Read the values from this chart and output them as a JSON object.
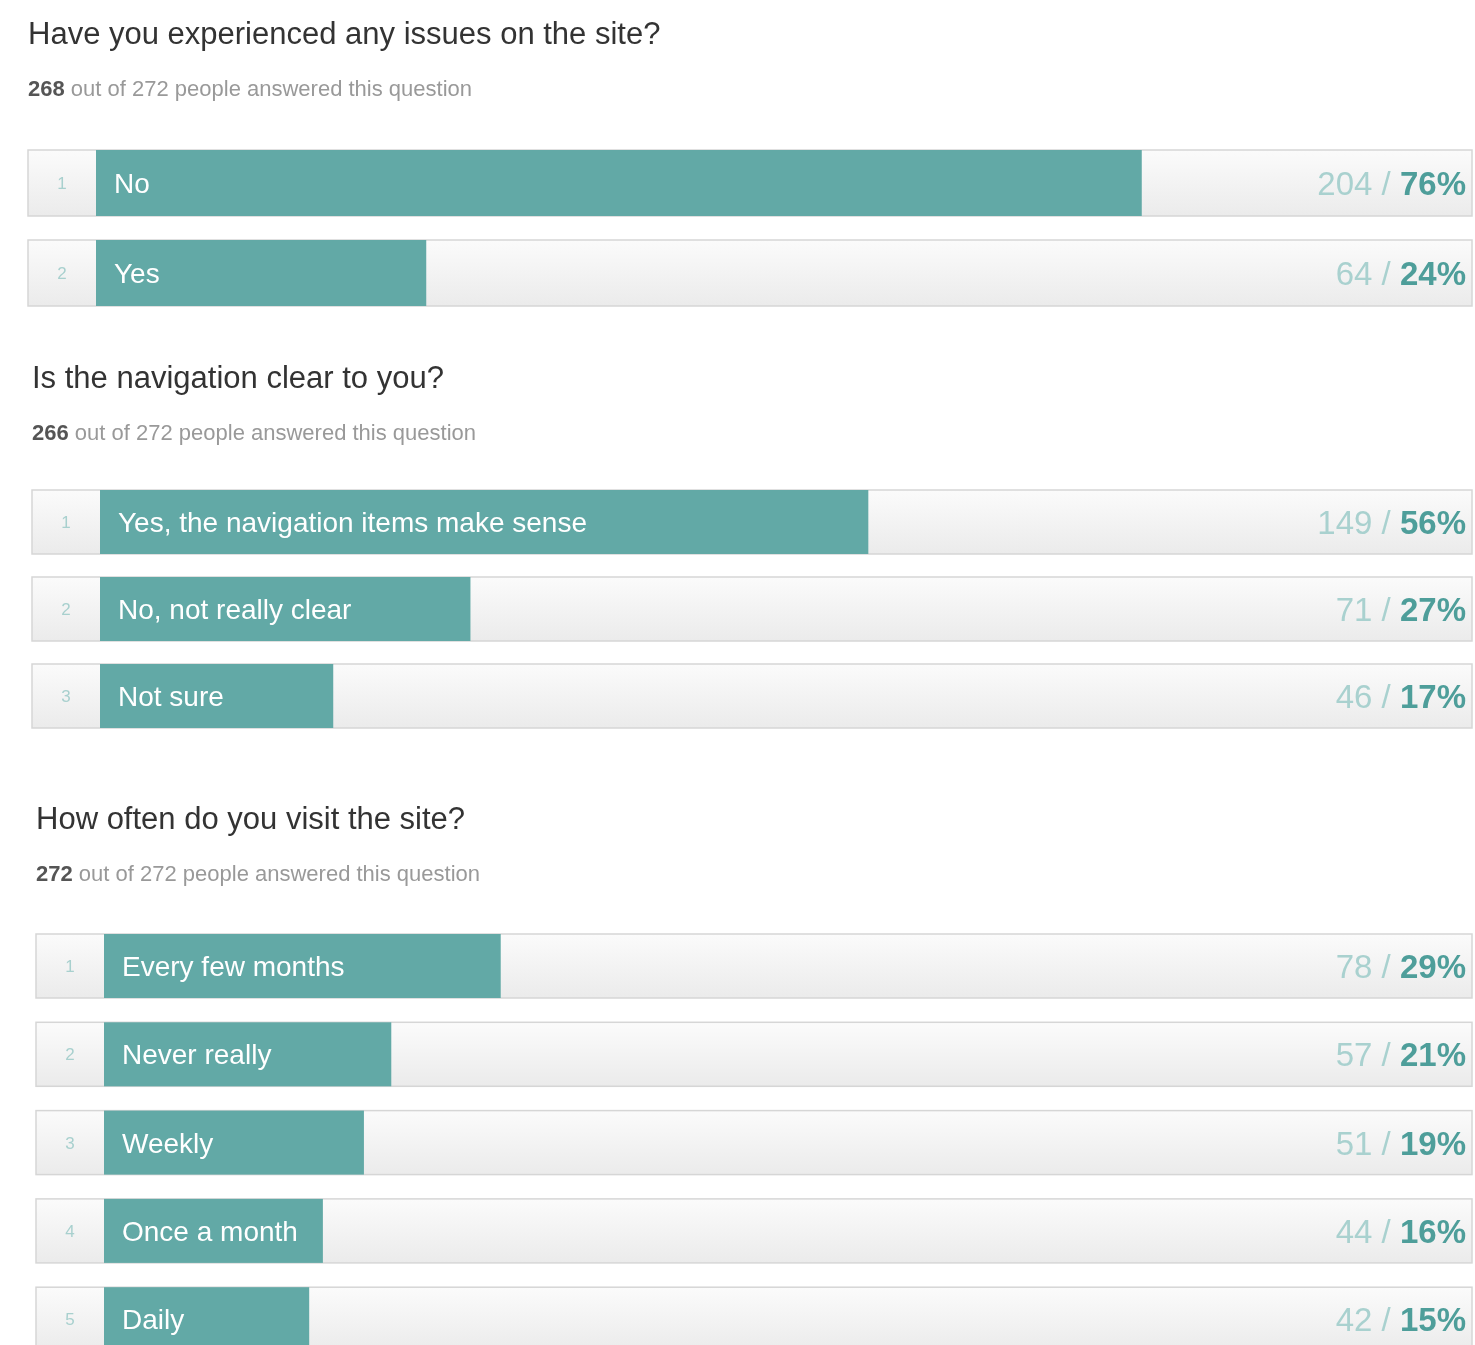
{
  "chart_data": [
    {
      "type": "bar",
      "orientation": "horizontal",
      "title": "Have you experienced any issues on the site?",
      "subtitle": "268 out of 272 people answered this question",
      "categories": [
        "No",
        "Yes"
      ],
      "values": [
        76,
        24
      ],
      "value_labels": [
        "204 / 76%",
        "64 / 24%"
      ],
      "color": "#62a9a6",
      "tick_labels": false,
      "annotations": [
        "1",
        "2"
      ]
    },
    {
      "type": "bar",
      "orientation": "horizontal",
      "title": "Is the navigation clear to you?",
      "subtitle": "266 out of 272 people answered this question",
      "categories": [
        "Yes, the navigation items make sense",
        "No, not really clear",
        "Not sure"
      ],
      "values": [
        56,
        27,
        17
      ],
      "value_labels": [
        "149 / 56%",
        "71 / 27%",
        "46 / 17%"
      ],
      "color": "#62a9a6",
      "tick_labels": false,
      "annotations": [
        "1",
        "2",
        "3"
      ]
    },
    {
      "type": "bar",
      "orientation": "horizontal",
      "title": "How often do you visit the site?",
      "subtitle": "272 out of 272 people answered this question",
      "categories": [
        "Every few months",
        "Never really",
        "Weekly",
        "Once a month",
        "Daily"
      ],
      "values": [
        29,
        21,
        19,
        16,
        15
      ],
      "value_labels": [
        "78 / 29%",
        "57 / 21%",
        "51 / 19%",
        "44 / 16%",
        "42 / 15%"
      ],
      "color": "#62a9a6",
      "tick_labels": false,
      "annotations": [
        "1",
        "2",
        "3",
        "4",
        "5"
      ]
    }
  ]
}
